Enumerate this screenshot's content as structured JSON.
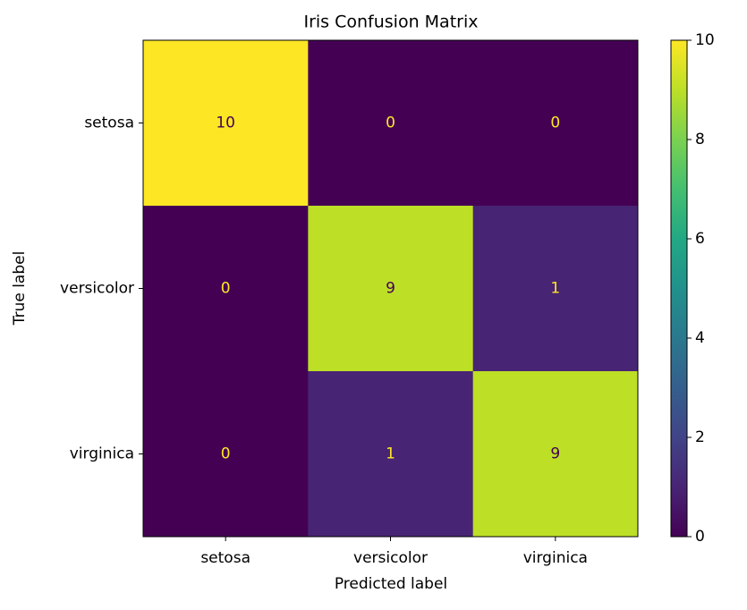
{
  "chart_data": {
    "type": "heatmap",
    "title": "Iris Confusion Matrix",
    "x_label": "Predicted label",
    "y_label": "True label",
    "x_categories": [
      "setosa",
      "versicolor",
      "virginica"
    ],
    "y_categories": [
      "setosa",
      "versicolor",
      "virginica"
    ],
    "values": [
      [
        10,
        0,
        0
      ],
      [
        0,
        9,
        1
      ],
      [
        0,
        1,
        9
      ]
    ],
    "colormap": "viridis",
    "clim": [
      0,
      10
    ],
    "cticks": [
      0,
      2,
      4,
      6,
      8,
      10
    ]
  }
}
